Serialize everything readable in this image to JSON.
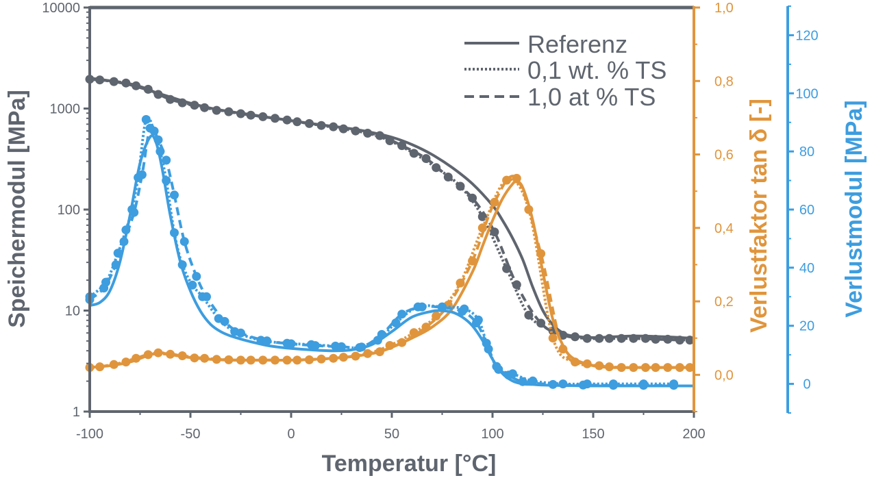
{
  "chart_data": {
    "type": "line",
    "title": "",
    "xlabel": "Temperatur [°C]",
    "xlim": [
      -100,
      200
    ],
    "xticks": [
      "-100",
      "-50",
      "0",
      "50",
      "100",
      "150",
      "200"
    ],
    "axes": {
      "left": {
        "label": "Speichermodul [MPa]",
        "scale": "log",
        "ylim": [
          1,
          10000
        ],
        "ticks": [
          "1",
          "10",
          "100",
          "1000",
          "10000"
        ],
        "color": "#5f656e"
      },
      "right1": {
        "label": "Verlustfaktor tan δ [-]",
        "scale": "linear",
        "ylim": [
          -0.1,
          1.0
        ],
        "ticks": [
          "0,0",
          "0,2",
          "0,4",
          "0,6",
          "0,8",
          "1,0"
        ],
        "color": "#e0953c"
      },
      "right2": {
        "label": "Verlustmodul [MPa]",
        "scale": "linear",
        "ylim": [
          -10,
          130
        ],
        "ticks": [
          "0",
          "20",
          "40",
          "60",
          "80",
          "100",
          "120"
        ],
        "color": "#3d9ddf"
      }
    },
    "legend": {
      "position": "top-right",
      "entries": [
        {
          "label": "Referenz",
          "style": "solid"
        },
        {
          "label": "0,1 wt. % TS",
          "style": "dotted"
        },
        {
          "label": "1,0 at % TS",
          "style": "dashed"
        }
      ]
    },
    "series": [
      {
        "axis": "left",
        "color": "#5f656e",
        "style": "solid",
        "markers": false,
        "x": [
          -100,
          -90,
          -80,
          -70,
          -60,
          -50,
          -40,
          -30,
          -20,
          -10,
          0,
          10,
          20,
          30,
          40,
          50,
          60,
          70,
          80,
          90,
          100,
          105,
          110,
          115,
          120,
          125,
          130,
          135,
          140,
          150,
          160,
          170,
          180,
          190,
          200
        ],
        "y": [
          2000,
          1880,
          1720,
          1500,
          1300,
          1130,
          1010,
          930,
          870,
          810,
          760,
          710,
          670,
          630,
          580,
          520,
          440,
          350,
          260,
          180,
          110,
          78,
          52,
          32,
          17,
          10,
          7.2,
          6,
          5.6,
          5.4,
          5.5,
          5.6,
          5.55,
          5.45,
          5.3
        ]
      },
      {
        "axis": "left",
        "color": "#5f656e",
        "style": "dotted",
        "markers": true,
        "x": [
          -100,
          -88,
          -77,
          -66,
          -54,
          -43,
          -31,
          -20,
          -8,
          3,
          15,
          26,
          38,
          49,
          61,
          72,
          84,
          95,
          107,
          118,
          130,
          141,
          153,
          164,
          176,
          187,
          198
        ],
        "y": [
          1950,
          1850,
          1680,
          1380,
          1140,
          1020,
          930,
          860,
          800,
          740,
          680,
          630,
          570,
          480,
          360,
          260,
          170,
          85,
          26,
          9,
          6.3,
          5.5,
          5.3,
          5.3,
          5.3,
          5.2,
          5.1
        ]
      },
      {
        "axis": "left",
        "color": "#5f656e",
        "style": "dashed",
        "markers": true,
        "x": [
          -95,
          -82,
          -71,
          -60,
          -48,
          -37,
          -25,
          -14,
          -2,
          9,
          21,
          32,
          44,
          55,
          67,
          78,
          90,
          101,
          112,
          124,
          135,
          147,
          158,
          170,
          181,
          193
        ],
        "y": [
          1920,
          1790,
          1550,
          1230,
          1080,
          960,
          890,
          830,
          770,
          710,
          660,
          600,
          540,
          430,
          320,
          210,
          130,
          60,
          18,
          7.5,
          5.7,
          5.3,
          5.3,
          5.3,
          5.2,
          5.1
        ]
      },
      {
        "axis": "right1",
        "color": "#e0953c",
        "style": "solid",
        "markers": false,
        "x": [
          -100,
          -90,
          -80,
          -70,
          -65,
          -60,
          -50,
          -40,
          -30,
          -20,
          -10,
          0,
          10,
          20,
          30,
          40,
          50,
          60,
          70,
          80,
          90,
          95,
          100,
          105,
          110,
          112,
          115,
          120,
          125,
          130,
          135,
          140,
          150,
          160,
          170,
          180,
          190,
          200
        ],
        "y": [
          0.02,
          0.025,
          0.035,
          0.055,
          0.06,
          0.055,
          0.047,
          0.042,
          0.04,
          0.04,
          0.04,
          0.04,
          0.042,
          0.045,
          0.05,
          0.058,
          0.075,
          0.1,
          0.13,
          0.18,
          0.28,
          0.35,
          0.42,
          0.48,
          0.52,
          0.525,
          0.51,
          0.42,
          0.28,
          0.15,
          0.08,
          0.045,
          0.025,
          0.02,
          0.02,
          0.02,
          0.02,
          0.02
        ]
      },
      {
        "axis": "right1",
        "color": "#e0953c",
        "style": "dotted",
        "markers": true,
        "x": [
          -100,
          -88,
          -77,
          -66,
          -54,
          -43,
          -31,
          -20,
          -8,
          3,
          15,
          26,
          38,
          49,
          61,
          72,
          84,
          95,
          107,
          118,
          130,
          141,
          153,
          164,
          176,
          187,
          198
        ],
        "y": [
          0.02,
          0.028,
          0.045,
          0.06,
          0.052,
          0.045,
          0.041,
          0.04,
          0.04,
          0.04,
          0.043,
          0.048,
          0.058,
          0.08,
          0.115,
          0.16,
          0.25,
          0.4,
          0.53,
          0.45,
          0.1,
          0.035,
          0.025,
          0.02,
          0.02,
          0.02,
          0.02
        ]
      },
      {
        "axis": "right1",
        "color": "#e0953c",
        "style": "dashed",
        "markers": true,
        "x": [
          -95,
          -82,
          -71,
          -60,
          -48,
          -37,
          -25,
          -14,
          -2,
          9,
          21,
          32,
          44,
          55,
          67,
          78,
          90,
          101,
          112,
          124,
          135,
          147,
          158,
          170,
          181,
          193
        ],
        "y": [
          0.022,
          0.035,
          0.055,
          0.056,
          0.046,
          0.042,
          0.04,
          0.04,
          0.04,
          0.041,
          0.045,
          0.051,
          0.063,
          0.088,
          0.13,
          0.19,
          0.31,
          0.47,
          0.535,
          0.33,
          0.07,
          0.03,
          0.022,
          0.02,
          0.02,
          0.02
        ]
      },
      {
        "axis": "right2",
        "color": "#3d9ddf",
        "style": "solid",
        "markers": false,
        "x": [
          -100,
          -95,
          -90,
          -85,
          -80,
          -75,
          -70,
          -67,
          -64,
          -60,
          -55,
          -50,
          -45,
          -40,
          -35,
          -30,
          -20,
          -10,
          0,
          10,
          20,
          30,
          40,
          50,
          60,
          70,
          75,
          80,
          85,
          90,
          95,
          100,
          105,
          110,
          115,
          120,
          125,
          130,
          140,
          150,
          160,
          170,
          180,
          190,
          200
        ],
        "y": [
          27,
          28,
          32,
          42,
          58,
          76,
          85,
          83,
          74,
          58,
          42,
          32,
          25,
          20.5,
          18,
          16.5,
          14.5,
          13,
          12.2,
          11.7,
          11.4,
          11.7,
          13.5,
          18,
          23,
          25,
          25.2,
          24.7,
          23,
          20,
          15,
          8.5,
          3.5,
          1,
          0,
          -0.2,
          -0.4,
          -0.5,
          -0.6,
          -0.7,
          -0.7,
          -0.7,
          -0.7,
          -0.7,
          -0.7
        ]
      },
      {
        "axis": "right2",
        "color": "#3d9ddf",
        "style": "dotted",
        "markers": true,
        "x": [
          -100,
          -92,
          -86,
          -82,
          -79,
          -76,
          -72,
          -68,
          -65,
          -62,
          -58,
          -54,
          -49,
          -44,
          -36,
          -28,
          -15,
          -2,
          10,
          22,
          34,
          43,
          52,
          63,
          75,
          86,
          93,
          98,
          103,
          110,
          120,
          135,
          147,
          160,
          175,
          190
        ],
        "y": [
          30,
          35,
          45,
          53,
          60,
          71,
          91,
          87,
          80,
          70,
          52,
          41,
          34,
          30,
          22.5,
          18,
          15,
          14,
          13.5,
          13,
          12.5,
          15,
          21,
          26.5,
          26.5,
          25.8,
          22,
          12,
          5,
          3.5,
          1,
          0,
          0,
          0,
          0,
          0
        ]
      },
      {
        "axis": "right2",
        "color": "#3d9ddf",
        "style": "dashed",
        "markers": true,
        "x": [
          -100,
          -93,
          -87,
          -83,
          -78,
          -74,
          -70,
          -66,
          -62,
          -58,
          -53,
          -47,
          -42,
          -33,
          -25,
          -12,
          0,
          12,
          25,
          35,
          45,
          55,
          65,
          75,
          85,
          92,
          97,
          102,
          108,
          115,
          130,
          145,
          160,
          175,
          190
        ],
        "y": [
          29,
          33,
          41,
          49,
          59,
          72,
          88,
          84,
          77,
          65,
          49,
          37,
          30,
          21.5,
          17.5,
          14.8,
          13.8,
          13.2,
          12.8,
          12.7,
          17,
          24,
          26.5,
          26.3,
          25,
          21,
          14,
          6,
          3,
          0.8,
          -0.2,
          -0.4,
          -0.5,
          -0.5,
          -0.5
        ]
      }
    ]
  }
}
